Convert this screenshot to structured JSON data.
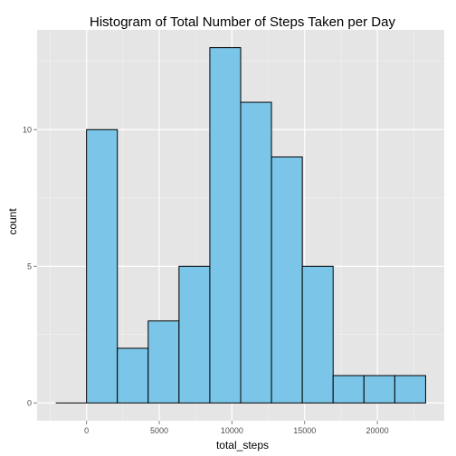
{
  "chart_data": {
    "type": "bar",
    "title": "Histogram of Total Number of Steps Taken per Day",
    "xlabel": "total_steps",
    "ylabel": "count",
    "bins": [
      {
        "x0": -2120,
        "x1": 0,
        "count": 0
      },
      {
        "x0": 0,
        "x1": 2120,
        "count": 10
      },
      {
        "x0": 2120,
        "x1": 4240,
        "count": 2
      },
      {
        "x0": 4240,
        "x1": 6360,
        "count": 3
      },
      {
        "x0": 6360,
        "x1": 8480,
        "count": 5
      },
      {
        "x0": 8480,
        "x1": 10600,
        "count": 13
      },
      {
        "x0": 10600,
        "x1": 12720,
        "count": 11
      },
      {
        "x0": 12720,
        "x1": 14840,
        "count": 9
      },
      {
        "x0": 14840,
        "x1": 16960,
        "count": 5
      },
      {
        "x0": 16960,
        "x1": 19080,
        "count": 1
      },
      {
        "x0": 19080,
        "x1": 21200,
        "count": 1
      },
      {
        "x0": 21200,
        "x1": 23320,
        "count": 1
      }
    ],
    "xlim": [
      -3400,
      24600
    ],
    "ylim": [
      -0.65,
      13.65
    ],
    "x_ticks": [
      {
        "value": 0,
        "label": "0"
      },
      {
        "value": 5000,
        "label": "5000"
      },
      {
        "value": 10000,
        "label": "10000"
      },
      {
        "value": 15000,
        "label": "15000"
      },
      {
        "value": 20000,
        "label": "20000"
      }
    ],
    "y_ticks": [
      {
        "value": 0,
        "label": "0"
      },
      {
        "value": 5,
        "label": "5"
      },
      {
        "value": 10,
        "label": "10"
      }
    ],
    "grid": true,
    "colors": {
      "panel": "#e5e5e5",
      "grid_major": "#ffffff",
      "grid_minor": "#f2f2f2",
      "bar_fill": "#7ac5e8",
      "bar_stroke": "#000000"
    }
  }
}
